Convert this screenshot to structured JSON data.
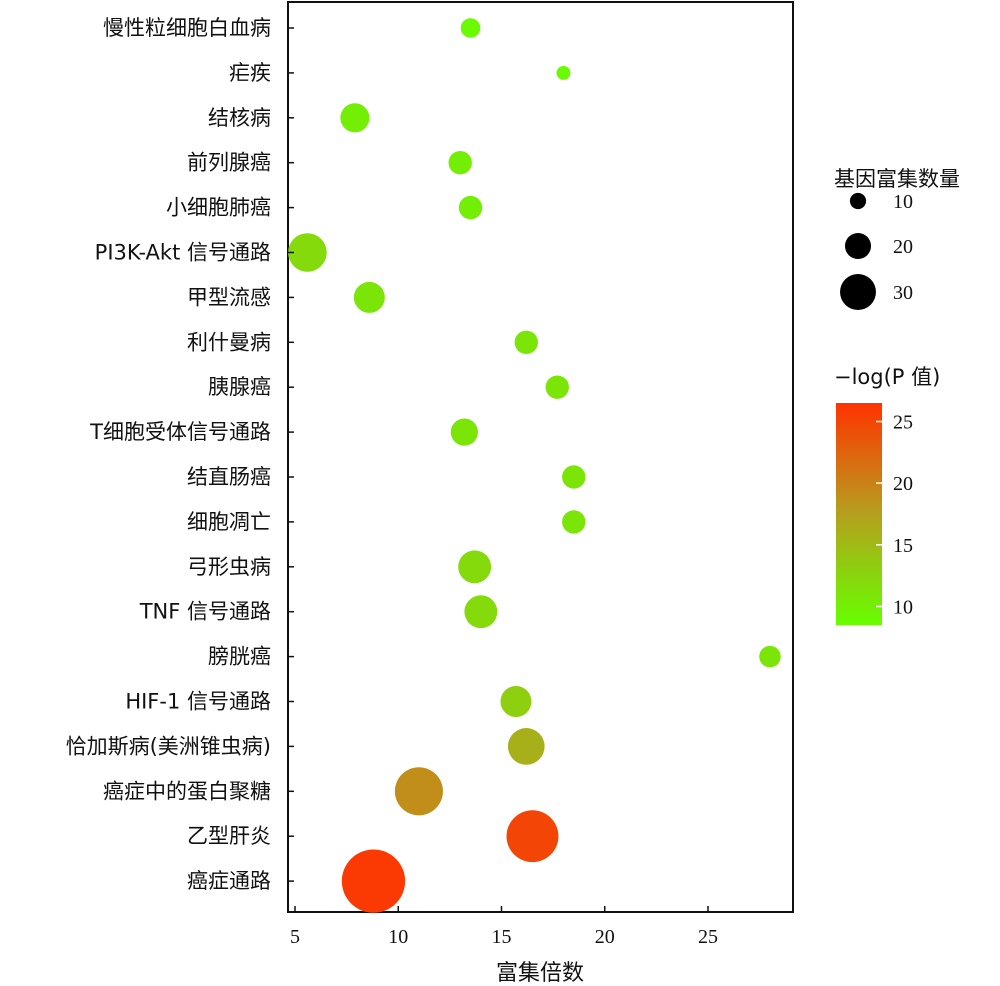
{
  "chart_data": {
    "type": "scatter",
    "title": "",
    "xlabel": "富集倍数",
    "ylabel": "",
    "xlim": [
      4.5,
      29.5
    ],
    "xticks": [
      5,
      10,
      15,
      20,
      25
    ],
    "categories": [
      "慢性粒细胞白血病",
      "疟疾",
      "结核病",
      "前列腺癌",
      "小细胞肺癌",
      "PI3K-Akt 信号通路",
      "甲型流感",
      "利什曼病",
      "胰腺癌",
      "T细胞受体信号通路",
      "结直肠癌",
      "细胞凋亡",
      "弓形虫病",
      "TNF 信号通路",
      "膀胱癌",
      "HIF-1 信号通路",
      "恰加斯病(美洲锥虫病)",
      "癌症中的蛋白聚糖",
      "乙型肝炎",
      "癌症通路"
    ],
    "points": [
      {
        "category": "慢性粒细胞白血病",
        "x": 13.5,
        "count": 10,
        "neglogp": 9
      },
      {
        "category": "疟疾",
        "x": 18.0,
        "count": 7,
        "neglogp": 9
      },
      {
        "category": "结核病",
        "x": 7.9,
        "count": 15,
        "neglogp": 10
      },
      {
        "category": "前列腺癌",
        "x": 13.0,
        "count": 12,
        "neglogp": 10
      },
      {
        "category": "小细胞肺癌",
        "x": 13.5,
        "count": 12,
        "neglogp": 10
      },
      {
        "category": "PI3K-Akt 信号通路",
        "x": 5.6,
        "count": 20,
        "neglogp": 12
      },
      {
        "category": "甲型流感",
        "x": 8.6,
        "count": 16,
        "neglogp": 11
      },
      {
        "category": "利什曼病",
        "x": 16.2,
        "count": 12,
        "neglogp": 11
      },
      {
        "category": "胰腺癌",
        "x": 17.7,
        "count": 12,
        "neglogp": 11
      },
      {
        "category": "T细胞受体信号通路",
        "x": 13.2,
        "count": 14,
        "neglogp": 11
      },
      {
        "category": "结直肠癌",
        "x": 18.5,
        "count": 12,
        "neglogp": 11
      },
      {
        "category": "细胞凋亡",
        "x": 18.5,
        "count": 12,
        "neglogp": 11
      },
      {
        "category": "弓形虫病",
        "x": 13.7,
        "count": 17,
        "neglogp": 12
      },
      {
        "category": "TNF 信号通路",
        "x": 14.0,
        "count": 17,
        "neglogp": 12
      },
      {
        "category": "膀胱癌",
        "x": 28.0,
        "count": 11,
        "neglogp": 11
      },
      {
        "category": "HIF-1 信号通路",
        "x": 15.7,
        "count": 16,
        "neglogp": 13
      },
      {
        "category": "恰加斯病(美洲锥虫病)",
        "x": 16.2,
        "count": 19,
        "neglogp": 16
      },
      {
        "category": "癌症中的蛋白聚糖",
        "x": 11.0,
        "count": 25,
        "neglogp": 19
      },
      {
        "category": "乙型肝炎",
        "x": 16.5,
        "count": 27,
        "neglogp": 25
      },
      {
        "category": "癌症通路",
        "x": 8.8,
        "count": 33,
        "neglogp": 26
      }
    ],
    "size_legend": {
      "title": "基因富集数量",
      "values": [
        10,
        20,
        30
      ]
    },
    "color_legend": {
      "title": "−log(P 值)",
      "range": [
        8.5,
        26.5
      ],
      "ticks": [
        10,
        15,
        20,
        25
      ],
      "colors": [
        "#66ff00",
        "#b5a01e",
        "#ff3300"
      ]
    }
  }
}
